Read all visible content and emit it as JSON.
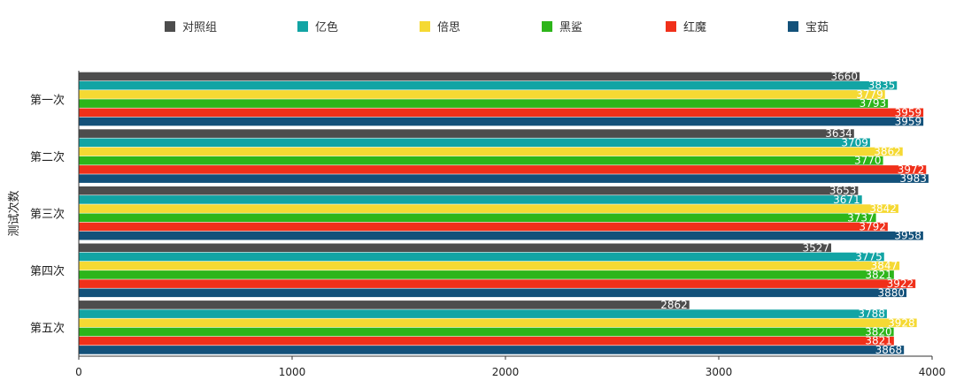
{
  "chart_data": {
    "type": "bar",
    "orientation": "horizontal",
    "ylabel": "测试次数",
    "categories": [
      "第一次",
      "第二次",
      "第三次",
      "第四次",
      "第五次"
    ],
    "xlim": [
      0,
      4000
    ],
    "xticks": [
      "0",
      "1000",
      "2000",
      "3000",
      "4000"
    ],
    "grid": false,
    "legend_position": "top",
    "series": [
      {
        "name": "对照组",
        "color": "#4d4d4d",
        "values": [
          3660,
          3634,
          3653,
          3527,
          2862
        ]
      },
      {
        "name": "亿色",
        "color": "#12a4a4",
        "values": [
          3835,
          3709,
          3671,
          3775,
          3788
        ]
      },
      {
        "name": "倍思",
        "color": "#f5d933",
        "values": [
          3779,
          3862,
          3842,
          3847,
          3928
        ]
      },
      {
        "name": "黑鲨",
        "color": "#2db51a",
        "values": [
          3793,
          3770,
          3737,
          3821,
          3820
        ]
      },
      {
        "name": "红魔",
        "color": "#f0301a",
        "values": [
          3959,
          3972,
          3792,
          3922,
          3821
        ]
      },
      {
        "name": "宝茹",
        "color": "#13517a",
        "values": [
          3959,
          3983,
          3958,
          3880,
          3868
        ]
      }
    ]
  }
}
